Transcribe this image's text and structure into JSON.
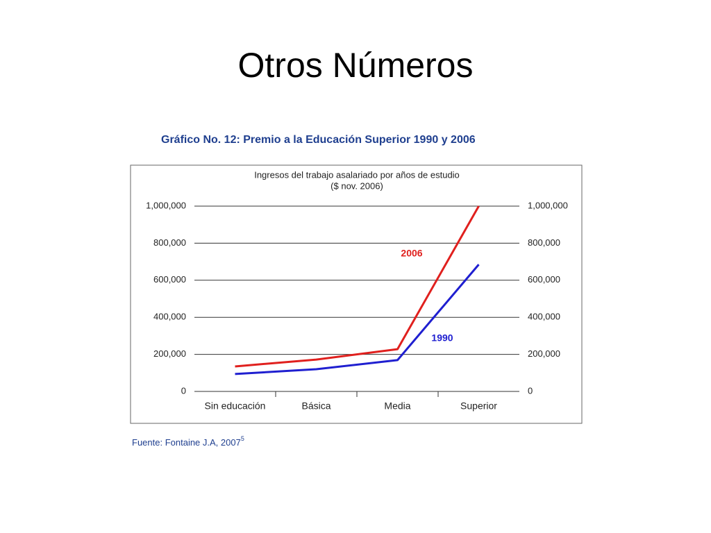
{
  "slide_title": "Otros Números",
  "chart_data": {
    "type": "line",
    "title": "Gráfico No. 12: Premio a la Educación Superior 1990 y 2006",
    "subtitle": [
      "Ingresos del trabajo asalariado por años de estudio",
      "($ nov. 2006)"
    ],
    "categories": [
      "Sin educación",
      "Básica",
      "Media",
      "Superior"
    ],
    "series": [
      {
        "name": "2006",
        "color": "#e0201e",
        "values": [
          135000,
          172000,
          228000,
          1000000
        ]
      },
      {
        "name": "1990",
        "color": "#1f1fd0",
        "values": [
          94000,
          120000,
          169000,
          685000
        ]
      }
    ],
    "ylim": [
      0,
      1000000
    ],
    "yticks": [
      0,
      {
        "value": 200000,
        "label": "200,000"
      },
      {
        "value": 400000,
        "label": "400,000"
      },
      {
        "value": 600000,
        "label": "600,000"
      },
      {
        "value": 800000,
        "label": "800,000"
      },
      {
        "value": 1000000,
        "label": "1,000,000"
      }
    ],
    "y2lim": [
      0,
      1000000
    ],
    "y2ticks": [
      0,
      {
        "value": 200000,
        "label": "200,000"
      },
      {
        "value": 400000,
        "label": "400,000"
      },
      {
        "value": 600000,
        "label": "600,000"
      },
      {
        "value": 800000,
        "label": "800,000"
      },
      {
        "value": 1000000,
        "label": "1,000,000"
      }
    ],
    "grid": true
  },
  "source": "Fuente: Fontaine J.A, 2007",
  "source_superscript": "5"
}
